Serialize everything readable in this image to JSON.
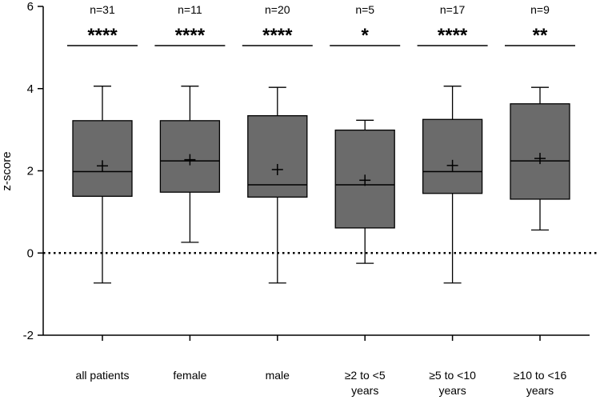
{
  "chart_data": {
    "type": "boxplot",
    "title": "",
    "xlabel": "",
    "ylabel": "z-score",
    "ylim": [
      -2,
      6
    ],
    "yticks": [
      -2,
      0,
      2,
      4,
      6
    ],
    "reference_line": 0,
    "reference_line_style": "dotted",
    "box_color": "#6b6b6b",
    "categories": [
      [
        "all patients"
      ],
      [
        "female"
      ],
      [
        "male"
      ],
      [
        "≥2 to <5",
        "years"
      ],
      [
        "≥5 to <10",
        "years"
      ],
      [
        "≥10 to <16",
        "years"
      ]
    ],
    "groups": [
      {
        "min": -0.73,
        "q1": 1.38,
        "median": 1.98,
        "q3": 3.22,
        "max": 4.06,
        "mean": 2.12,
        "n_label": "n=31",
        "significance": "****"
      },
      {
        "min": 0.26,
        "q1": 1.48,
        "median": 2.24,
        "q3": 3.22,
        "max": 4.06,
        "mean": 2.27,
        "n_label": "n=11",
        "significance": "****"
      },
      {
        "min": -0.73,
        "q1": 1.36,
        "median": 1.66,
        "q3": 3.34,
        "max": 4.03,
        "mean": 2.03,
        "n_label": "n=20",
        "significance": "****"
      },
      {
        "min": -0.25,
        "q1": 0.61,
        "median": 1.66,
        "q3": 2.99,
        "max": 3.23,
        "mean": 1.77,
        "n_label": "n=5",
        "significance": "*"
      },
      {
        "min": -0.73,
        "q1": 1.45,
        "median": 1.98,
        "q3": 3.25,
        "max": 4.06,
        "mean": 2.13,
        "n_label": "n=17",
        "significance": "****"
      },
      {
        "min": 0.56,
        "q1": 1.31,
        "median": 2.24,
        "q3": 3.63,
        "max": 4.03,
        "mean": 2.3,
        "n_label": "n=9",
        "significance": "**"
      }
    ]
  }
}
